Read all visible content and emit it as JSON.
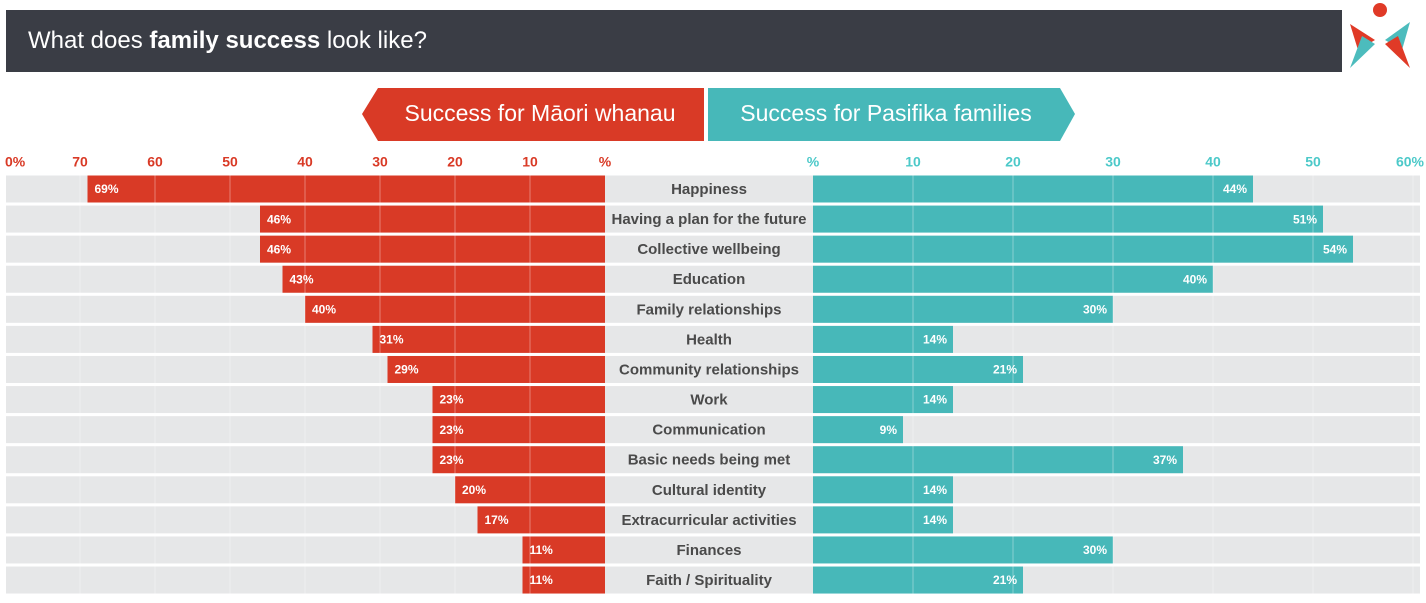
{
  "chart_data": {
    "type": "butterfly",
    "title": [
      "What does ",
      "family success",
      " look like?"
    ],
    "categories": [
      "Happiness",
      "Having a plan for the future",
      "Collective wellbeing",
      "Education",
      "Family relationships",
      "Health",
      "Community relationships",
      "Work",
      "Communication",
      "Basic needs being met",
      "Cultural identity",
      "Extracurricular activities",
      "Finances",
      "Faith / Spirituality"
    ],
    "series": [
      {
        "name": "Success for Māori whanau",
        "color": "#d93a26",
        "axis": "x",
        "values": [
          69,
          46,
          46,
          43,
          40,
          31,
          29,
          23,
          23,
          23,
          20,
          17,
          11,
          11
        ],
        "value_labels": [
          "69%",
          "46%",
          "46%",
          "43%",
          "40%",
          "31%",
          "29%",
          "23%",
          "23%",
          "23%",
          "20%",
          "17%",
          "11%",
          "11%"
        ]
      },
      {
        "name": "Success for Pasifika families",
        "color": "#47b8b9",
        "axis": "x2",
        "values": [
          44,
          51,
          54,
          40,
          30,
          14,
          21,
          14,
          9,
          37,
          14,
          14,
          30,
          21
        ],
        "value_labels": [
          "44%",
          "51%",
          "54%",
          "40%",
          "30%",
          "14%",
          "21%",
          "14%",
          "9%",
          "37%",
          "14%",
          "14%",
          "30%",
          "21%"
        ]
      }
    ],
    "xlim": [
      0,
      80
    ],
    "xticks": [
      {
        "value": 0,
        "label": "%"
      },
      10,
      20,
      30,
      40,
      50,
      60,
      70,
      {
        "value": 80,
        "label": "0%"
      }
    ],
    "x2lim": [
      0,
      60
    ],
    "x2ticks": [
      {
        "value": 0,
        "label": "%"
      },
      10,
      20,
      30,
      40,
      50,
      {
        "value": 60,
        "label": "60%"
      }
    ],
    "grid": true
  }
}
